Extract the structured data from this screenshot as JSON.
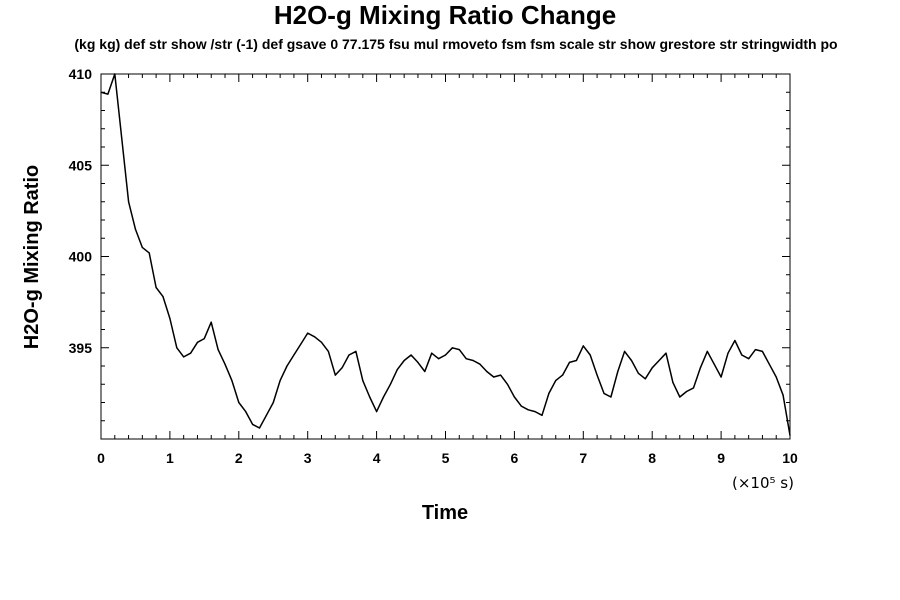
{
  "chart_data": {
    "type": "line",
    "title": "H2O-g Mixing Ratio Change",
    "subtitle": "(kg kg) def str show /str (-1) def gsave 0 77.175 fsu mul rmoveto fsm fsm scale str show grestore str stringwidth po",
    "xlabel": "Time",
    "ylabel": "H2O-g Mixing Ratio",
    "x_unit": "(×10⁵ s)",
    "xlim": [
      0,
      10
    ],
    "ylim": [
      390,
      410
    ],
    "x_ticks": [
      "0",
      "1",
      "2",
      "3",
      "4",
      "5",
      "6",
      "7",
      "8",
      "9",
      "10"
    ],
    "y_ticks": [
      "395",
      "400",
      "405",
      "410"
    ],
    "grid": false,
    "series": [
      {
        "x": [
          0,
          0.1,
          0.2,
          0.3,
          0.4,
          0.5,
          0.6,
          0.7,
          0.8,
          0.9,
          1.0,
          1.1,
          1.2,
          1.3,
          1.4,
          1.5,
          1.6,
          1.7,
          1.8,
          1.9,
          2.0,
          2.1,
          2.2,
          2.3,
          2.4,
          2.5,
          2.6,
          2.7,
          2.8,
          2.9,
          3.0,
          3.1,
          3.2,
          3.3,
          3.4,
          3.5,
          3.6,
          3.7,
          3.8,
          3.9,
          4.0,
          4.1,
          4.2,
          4.3,
          4.4,
          4.5,
          4.6,
          4.7,
          4.8,
          4.9,
          5.0,
          5.1,
          5.2,
          5.3,
          5.4,
          5.5,
          5.6,
          5.7,
          5.8,
          5.9,
          6.0,
          6.1,
          6.2,
          6.3,
          6.4,
          6.5,
          6.6,
          6.7,
          6.8,
          6.9,
          7.0,
          7.1,
          7.2,
          7.3,
          7.4,
          7.5,
          7.6,
          7.7,
          7.8,
          7.9,
          8.0,
          8.1,
          8.2,
          8.3,
          8.4,
          8.5,
          8.6,
          8.7,
          8.8,
          8.9,
          9.0,
          9.1,
          9.2,
          9.3,
          9.4,
          9.5,
          9.6,
          9.7,
          9.8,
          9.9,
          10.0
        ],
        "y": [
          409.0,
          408.9,
          410.0,
          406.5,
          403.0,
          401.5,
          400.5,
          400.2,
          398.3,
          397.8,
          396.6,
          395.0,
          394.5,
          394.7,
          395.3,
          395.5,
          396.4,
          394.9,
          394.1,
          393.2,
          392.0,
          391.5,
          390.8,
          390.6,
          391.3,
          392.0,
          393.2,
          394.0,
          394.6,
          395.2,
          395.8,
          395.6,
          395.3,
          394.8,
          393.5,
          393.9,
          394.6,
          394.8,
          393.2,
          392.3,
          391.5,
          392.3,
          393.0,
          393.8,
          394.3,
          394.6,
          394.2,
          393.7,
          394.7,
          394.4,
          394.6,
          395.0,
          394.9,
          394.4,
          394.3,
          394.1,
          393.7,
          393.4,
          393.5,
          393.0,
          392.3,
          391.8,
          391.6,
          391.5,
          391.3,
          392.5,
          393.2,
          393.5,
          394.2,
          394.3,
          395.1,
          394.6,
          393.5,
          392.5,
          392.3,
          393.7,
          394.8,
          394.3,
          393.6,
          393.3,
          393.9,
          394.3,
          394.7,
          393.1,
          392.3,
          392.6,
          392.8,
          393.9,
          394.8,
          394.1,
          393.4,
          394.7,
          395.4,
          394.6,
          394.4,
          394.9,
          394.8,
          394.1,
          393.4,
          392.4,
          390.2
        ]
      }
    ]
  }
}
